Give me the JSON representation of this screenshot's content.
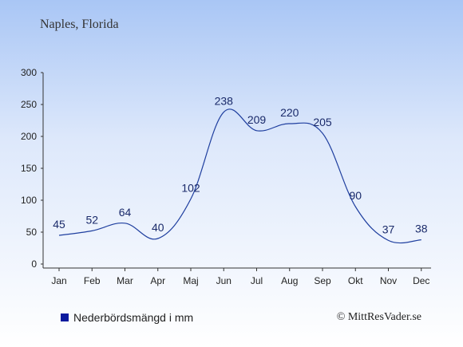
{
  "chart_data": {
    "type": "line",
    "title": "Naples, Florida",
    "categories": [
      "Jan",
      "Feb",
      "Mar",
      "Apr",
      "Maj",
      "Jun",
      "Jul",
      "Aug",
      "Sep",
      "Okt",
      "Nov",
      "Dec"
    ],
    "series": [
      {
        "name": "Nederbördsmängd i mm",
        "values": [
          45,
          52,
          64,
          40,
          102,
          238,
          209,
          220,
          205,
          90,
          37,
          38
        ]
      }
    ],
    "ylim": [
      0,
      300
    ],
    "yticks": [
      "0",
      "50",
      "100",
      "150",
      "200",
      "250",
      "300"
    ],
    "grid": false,
    "legend_position": "bottom-left",
    "colors": {
      "series": "#1f3f9f",
      "legend_swatch": "#0b1a9e"
    }
  },
  "copyright": "© MittResVader.se"
}
